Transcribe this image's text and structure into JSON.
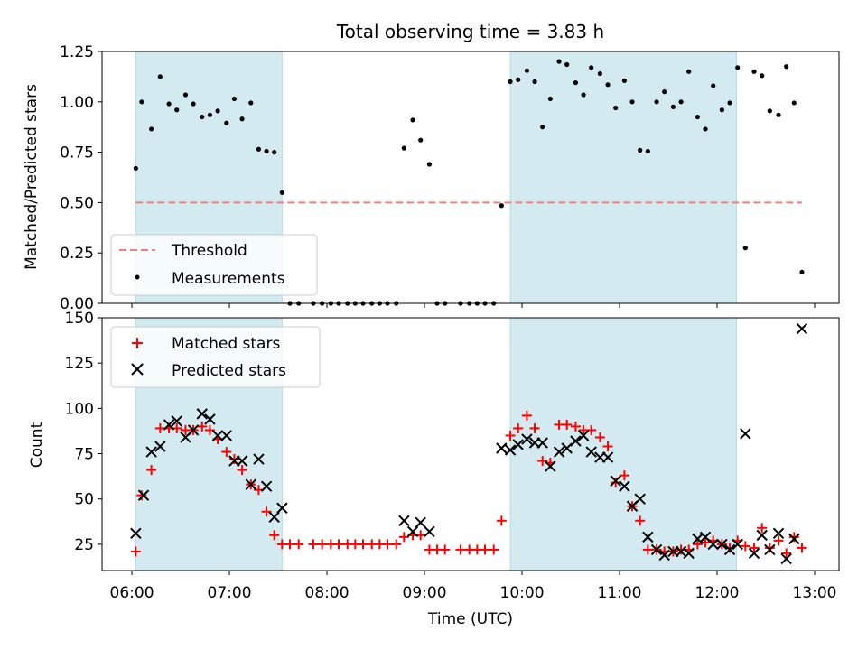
{
  "chart_data": [
    {
      "type": "scatter",
      "title": "Total observing time = 3.83 h",
      "ylabel": "Matched/Predicted stars",
      "xlabel": "",
      "ylim": [
        0,
        1.25
      ],
      "yticks": [
        "0.00",
        "0.25",
        "0.50",
        "0.75",
        "1.00",
        "1.25"
      ],
      "xlim_hours": [
        5.694,
        13.25
      ],
      "shaded_intervals_hours": [
        [
          6.04,
          7.54
        ],
        [
          9.88,
          12.2
        ]
      ],
      "shade_color": "#d3eaf0",
      "threshold": {
        "name": "Threshold",
        "value": 0.5,
        "x_range_hours": [
          6.04,
          12.87
        ],
        "color": "#f08080"
      },
      "legend": {
        "location": "lower-left",
        "entries": [
          "Threshold",
          "Measurements"
        ]
      },
      "series": [
        {
          "name": "Measurements",
          "color": "#000000",
          "marker": "dot",
          "points": [
            [
              6.04,
              0.67
            ],
            [
              6.1,
              1.0
            ],
            [
              6.2,
              0.865
            ],
            [
              6.29,
              1.125
            ],
            [
              6.38,
              0.99
            ],
            [
              6.46,
              0.96
            ],
            [
              6.55,
              1.035
            ],
            [
              6.63,
              0.99
            ],
            [
              6.72,
              0.925
            ],
            [
              6.8,
              0.935
            ],
            [
              6.88,
              0.955
            ],
            [
              6.97,
              0.895
            ],
            [
              7.05,
              1.015
            ],
            [
              7.13,
              0.915
            ],
            [
              7.22,
              0.995
            ],
            [
              7.3,
              0.765
            ],
            [
              7.38,
              0.755
            ],
            [
              7.46,
              0.75
            ],
            [
              7.54,
              0.55
            ],
            [
              7.62,
              0
            ],
            [
              7.71,
              0
            ],
            [
              7.86,
              0
            ],
            [
              7.95,
              0
            ],
            [
              8.04,
              0
            ],
            [
              8.12,
              0
            ],
            [
              8.21,
              0
            ],
            [
              8.29,
              0
            ],
            [
              8.37,
              0
            ],
            [
              8.46,
              0
            ],
            [
              8.54,
              0
            ],
            [
              8.62,
              0
            ],
            [
              8.71,
              0
            ],
            [
              8.79,
              0.77
            ],
            [
              8.88,
              0.91
            ],
            [
              8.96,
              0.81
            ],
            [
              9.05,
              0.69
            ],
            [
              9.13,
              0
            ],
            [
              9.21,
              0
            ],
            [
              9.37,
              0
            ],
            [
              9.46,
              0
            ],
            [
              9.54,
              0
            ],
            [
              9.62,
              0
            ],
            [
              9.71,
              0
            ],
            [
              9.79,
              0.485
            ],
            [
              9.88,
              1.1
            ],
            [
              9.96,
              1.11
            ],
            [
              10.05,
              1.155
            ],
            [
              10.13,
              1.1
            ],
            [
              10.21,
              0.875
            ],
            [
              10.29,
              1.015
            ],
            [
              10.38,
              1.2
            ],
            [
              10.46,
              1.185
            ],
            [
              10.55,
              1.095
            ],
            [
              10.63,
              1.035
            ],
            [
              10.71,
              1.17
            ],
            [
              10.8,
              1.14
            ],
            [
              10.88,
              1.085
            ],
            [
              10.96,
              0.97
            ],
            [
              11.05,
              1.105
            ],
            [
              11.13,
              1.0
            ],
            [
              11.21,
              0.76
            ],
            [
              11.29,
              0.755
            ],
            [
              11.38,
              1.0
            ],
            [
              11.46,
              1.05
            ],
            [
              11.55,
              0.975
            ],
            [
              11.63,
              1.0
            ],
            [
              11.71,
              1.15
            ],
            [
              11.8,
              0.925
            ],
            [
              11.88,
              0.865
            ],
            [
              11.96,
              1.08
            ],
            [
              12.05,
              0.96
            ],
            [
              12.13,
              0.995
            ],
            [
              12.21,
              1.17
            ],
            [
              12.29,
              0.275
            ],
            [
              12.38,
              1.15
            ],
            [
              12.46,
              1.13
            ],
            [
              12.54,
              0.955
            ],
            [
              12.63,
              0.935
            ],
            [
              12.71,
              1.175
            ],
            [
              12.79,
              0.995
            ],
            [
              12.87,
              0.155
            ]
          ]
        }
      ]
    },
    {
      "type": "scatter",
      "title": "",
      "ylabel": "Count",
      "xlabel": "Time (UTC)",
      "ylim": [
        10.5,
        150
      ],
      "yticks": [
        "25",
        "50",
        "75",
        "100",
        "125",
        "150"
      ],
      "xticks": [
        "06:00",
        "07:00",
        "08:00",
        "09:00",
        "10:00",
        "11:00",
        "12:00",
        "13:00"
      ],
      "xlim_hours": [
        5.694,
        13.25
      ],
      "shaded_intervals_hours": [
        [
          6.04,
          7.54
        ],
        [
          9.88,
          12.2
        ]
      ],
      "legend": {
        "location": "upper-left",
        "entries": [
          "Matched stars",
          "Predicted stars"
        ]
      },
      "series": [
        {
          "name": "Matched stars",
          "color": "#ff0000",
          "marker": "plus",
          "points": [
            [
              6.04,
              21
            ],
            [
              6.1,
              52
            ],
            [
              6.2,
              66
            ],
            [
              6.29,
              89
            ],
            [
              6.38,
              89
            ],
            [
              6.46,
              89
            ],
            [
              6.55,
              88
            ],
            [
              6.63,
              88
            ],
            [
              6.72,
              90
            ],
            [
              6.8,
              88
            ],
            [
              6.88,
              83
            ],
            [
              6.97,
              76
            ],
            [
              7.05,
              72
            ],
            [
              7.13,
              66
            ],
            [
              7.22,
              58
            ],
            [
              7.3,
              55
            ],
            [
              7.38,
              43
            ],
            [
              7.46,
              30
            ],
            [
              7.54,
              25
            ],
            [
              7.62,
              25
            ],
            [
              7.71,
              25
            ],
            [
              7.86,
              25
            ],
            [
              7.95,
              25
            ],
            [
              8.04,
              25
            ],
            [
              8.12,
              25
            ],
            [
              8.21,
              25
            ],
            [
              8.29,
              25
            ],
            [
              8.37,
              25
            ],
            [
              8.46,
              25
            ],
            [
              8.54,
              25
            ],
            [
              8.62,
              25
            ],
            [
              8.71,
              25
            ],
            [
              8.79,
              29
            ],
            [
              8.88,
              30
            ],
            [
              8.96,
              30
            ],
            [
              9.05,
              22
            ],
            [
              9.13,
              22
            ],
            [
              9.21,
              22
            ],
            [
              9.37,
              22
            ],
            [
              9.46,
              22
            ],
            [
              9.54,
              22
            ],
            [
              9.62,
              22
            ],
            [
              9.71,
              22
            ],
            [
              9.79,
              38
            ],
            [
              9.88,
              85
            ],
            [
              9.96,
              89
            ],
            [
              10.05,
              96
            ],
            [
              10.13,
              89
            ],
            [
              10.21,
              71
            ],
            [
              10.29,
              70
            ],
            [
              10.38,
              91
            ],
            [
              10.46,
              91
            ],
            [
              10.55,
              90
            ],
            [
              10.63,
              88
            ],
            [
              10.71,
              88
            ],
            [
              10.8,
              84
            ],
            [
              10.88,
              79
            ],
            [
              10.96,
              59
            ],
            [
              11.05,
              63
            ],
            [
              11.13,
              46
            ],
            [
              11.21,
              38
            ],
            [
              11.29,
              22
            ],
            [
              11.38,
              22
            ],
            [
              11.46,
              21
            ],
            [
              11.55,
              21
            ],
            [
              11.63,
              22
            ],
            [
              11.71,
              22
            ],
            [
              11.8,
              25
            ],
            [
              11.88,
              26
            ],
            [
              11.96,
              27
            ],
            [
              12.05,
              25
            ],
            [
              12.13,
              23
            ],
            [
              12.21,
              27
            ],
            [
              12.29,
              24
            ],
            [
              12.38,
              23
            ],
            [
              12.46,
              34
            ],
            [
              12.54,
              23
            ],
            [
              12.63,
              27
            ],
            [
              12.71,
              20
            ],
            [
              12.79,
              29
            ],
            [
              12.87,
              23
            ]
          ]
        },
        {
          "name": "Predicted stars",
          "color": "#000000",
          "marker": "x",
          "points": [
            [
              6.04,
              31
            ],
            [
              6.12,
              52
            ],
            [
              6.2,
              76
            ],
            [
              6.29,
              79
            ],
            [
              6.38,
              91
            ],
            [
              6.46,
              93
            ],
            [
              6.55,
              84
            ],
            [
              6.63,
              88
            ],
            [
              6.72,
              97
            ],
            [
              6.8,
              94
            ],
            [
              6.88,
              85
            ],
            [
              6.97,
              85
            ],
            [
              7.05,
              71
            ],
            [
              7.13,
              71
            ],
            [
              7.22,
              58
            ],
            [
              7.3,
              72
            ],
            [
              7.38,
              57
            ],
            [
              7.46,
              40
            ],
            [
              7.54,
              45
            ],
            [
              8.79,
              38
            ],
            [
              8.88,
              32
            ],
            [
              8.96,
              37
            ],
            [
              9.05,
              32
            ],
            [
              9.79,
              78
            ],
            [
              9.88,
              77
            ],
            [
              9.96,
              80
            ],
            [
              10.05,
              83
            ],
            [
              10.13,
              81
            ],
            [
              10.21,
              81
            ],
            [
              10.29,
              68
            ],
            [
              10.38,
              76
            ],
            [
              10.46,
              78
            ],
            [
              10.55,
              82
            ],
            [
              10.63,
              85
            ],
            [
              10.71,
              76
            ],
            [
              10.8,
              73
            ],
            [
              10.88,
              73
            ],
            [
              10.96,
              60
            ],
            [
              11.05,
              57
            ],
            [
              11.13,
              46
            ],
            [
              11.21,
              50
            ],
            [
              11.29,
              29
            ],
            [
              11.38,
              22
            ],
            [
              11.46,
              19
            ],
            [
              11.55,
              21
            ],
            [
              11.63,
              21
            ],
            [
              11.71,
              20
            ],
            [
              11.8,
              28
            ],
            [
              11.88,
              29
            ],
            [
              11.96,
              25
            ],
            [
              12.05,
              25
            ],
            [
              12.13,
              22
            ],
            [
              12.21,
              25
            ],
            [
              12.29,
              86
            ],
            [
              12.38,
              20
            ],
            [
              12.46,
              30
            ],
            [
              12.54,
              22
            ],
            [
              12.63,
              31
            ],
            [
              12.71,
              17
            ],
            [
              12.79,
              28
            ],
            [
              12.87,
              144
            ]
          ]
        }
      ]
    }
  ]
}
